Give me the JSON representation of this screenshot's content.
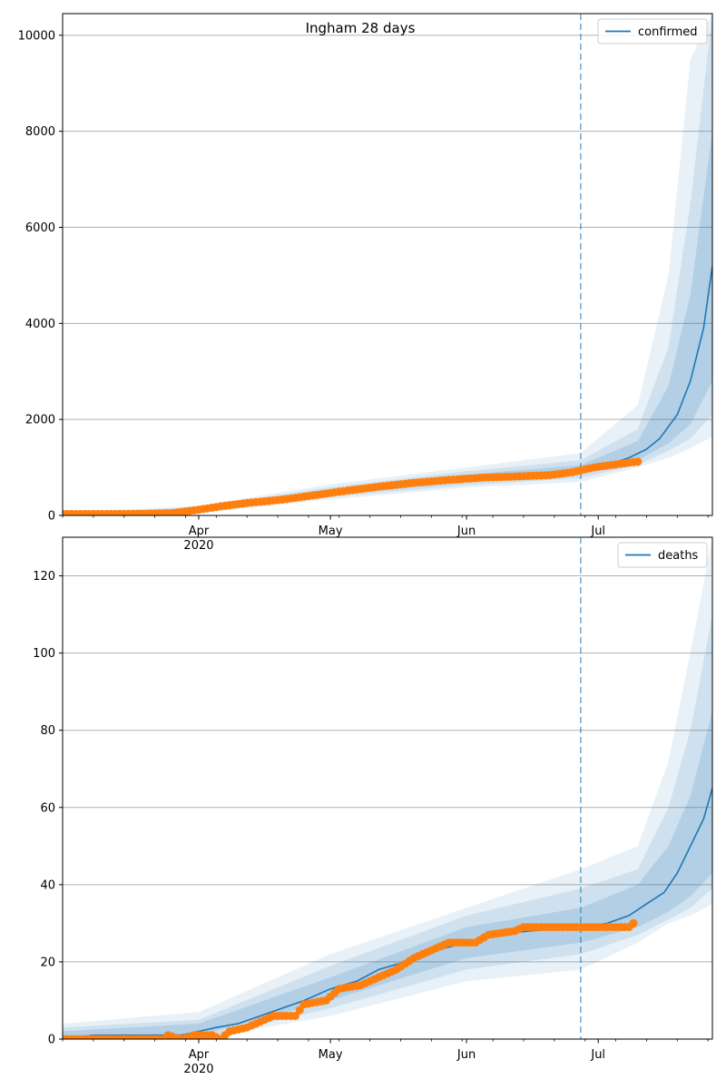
{
  "chart_data": [
    {
      "type": "line",
      "title": "Ingham 28 days",
      "xlabel": "",
      "ylabel": "",
      "x_range": [
        "2020-03-01",
        "2020-07-27"
      ],
      "ylim": [
        0,
        10450
      ],
      "yticks": [
        0,
        2000,
        4000,
        6000,
        8000,
        10000
      ],
      "xticks": [
        {
          "date": "2020-04-01",
          "label": "Apr",
          "sublabel": "2020"
        },
        {
          "date": "2020-05-01",
          "label": "May",
          "sublabel": ""
        },
        {
          "date": "2020-06-01",
          "label": "Jun",
          "sublabel": ""
        },
        {
          "date": "2020-07-01",
          "label": "Jul",
          "sublabel": ""
        }
      ],
      "grid": "y",
      "legend_position": "top-right",
      "forecast_start": "2020-06-27",
      "series": [
        {
          "name": "confirmed",
          "kind": "model-median",
          "color": "#1f77b4",
          "points": [
            [
              "2020-03-01",
              30
            ],
            [
              "2020-03-15",
              30
            ],
            [
              "2020-03-24",
              40
            ],
            [
              "2020-03-28",
              90
            ],
            [
              "2020-04-04",
              190
            ],
            [
              "2020-04-10",
              250
            ],
            [
              "2020-04-18",
              300
            ],
            [
              "2020-04-25",
              400
            ],
            [
              "2020-05-01",
              470
            ],
            [
              "2020-05-08",
              550
            ],
            [
              "2020-05-15",
              620
            ],
            [
              "2020-05-22",
              690
            ],
            [
              "2020-06-01",
              760
            ],
            [
              "2020-06-10",
              800
            ],
            [
              "2020-06-20",
              850
            ],
            [
              "2020-06-27",
              950
            ],
            [
              "2020-07-03",
              1050
            ],
            [
              "2020-07-08",
              1200
            ],
            [
              "2020-07-12",
              1380
            ],
            [
              "2020-07-15",
              1600
            ],
            [
              "2020-07-19",
              2100
            ],
            [
              "2020-07-22",
              2800
            ],
            [
              "2020-07-25",
              3900
            ],
            [
              "2020-07-27",
              5200
            ]
          ]
        },
        {
          "name": "",
          "kind": "observed",
          "color": "#ff7f0e",
          "points": [
            [
              "2020-03-01",
              30
            ],
            [
              "2020-03-15",
              30
            ],
            [
              "2020-03-20",
              35
            ],
            [
              "2020-03-26",
              50
            ],
            [
              "2020-04-01",
              120
            ],
            [
              "2020-04-06",
              190
            ],
            [
              "2020-04-12",
              260
            ],
            [
              "2020-04-20",
              330
            ],
            [
              "2020-04-28",
              430
            ],
            [
              "2020-05-05",
              520
            ],
            [
              "2020-05-12",
              600
            ],
            [
              "2020-05-20",
              680
            ],
            [
              "2020-05-28",
              740
            ],
            [
              "2020-06-05",
              790
            ],
            [
              "2020-06-12",
              810
            ],
            [
              "2020-06-20",
              840
            ],
            [
              "2020-06-25",
              900
            ],
            [
              "2020-06-30",
              1000
            ],
            [
              "2020-07-04",
              1050
            ],
            [
              "2020-07-08",
              1100
            ],
            [
              "2020-07-10",
              1120
            ]
          ]
        }
      ],
      "bands": {
        "color": "#1f77b4",
        "layers": [
          {
            "level": "outer",
            "points": [
              [
                "2020-03-01",
                0,
                70
              ],
              [
                "2020-04-01",
                50,
                200
              ],
              [
                "2020-05-01",
                330,
                650
              ],
              [
                "2020-06-01",
                580,
                1000
              ],
              [
                "2020-06-27",
                700,
                1300
              ],
              [
                "2020-07-10",
                1000,
                2300
              ],
              [
                "2020-07-17",
                1200,
                5000
              ],
              [
                "2020-07-22",
                1400,
                9500
              ],
              [
                "2020-07-27",
                1650,
                10450
              ]
            ]
          },
          {
            "level": "mid",
            "points": [
              [
                "2020-03-01",
                10,
                55
              ],
              [
                "2020-04-01",
                70,
                170
              ],
              [
                "2020-05-01",
                380,
                590
              ],
              [
                "2020-06-01",
                630,
                920
              ],
              [
                "2020-06-27",
                780,
                1150
              ],
              [
                "2020-07-10",
                1050,
                1800
              ],
              [
                "2020-07-17",
                1350,
                3500
              ],
              [
                "2020-07-22",
                1600,
                6500
              ],
              [
                "2020-07-27",
                2100,
                10450
              ]
            ]
          },
          {
            "level": "inner",
            "points": [
              [
                "2020-03-01",
                20,
                45
              ],
              [
                "2020-04-01",
                90,
                150
              ],
              [
                "2020-05-01",
                420,
                530
              ],
              [
                "2020-06-01",
                690,
                850
              ],
              [
                "2020-06-27",
                860,
                1050
              ],
              [
                "2020-07-10",
                1150,
                1550
              ],
              [
                "2020-07-17",
                1500,
                2700
              ],
              [
                "2020-07-22",
                1900,
                4600
              ],
              [
                "2020-07-27",
                2800,
                8000
              ]
            ]
          }
        ]
      }
    },
    {
      "type": "line",
      "title": "",
      "xlabel": "",
      "ylabel": "",
      "x_range": [
        "2020-03-01",
        "2020-07-27"
      ],
      "ylim": [
        0,
        130
      ],
      "yticks": [
        0,
        20,
        40,
        60,
        80,
        100,
        120
      ],
      "xticks": [
        {
          "date": "2020-04-01",
          "label": "Apr",
          "sublabel": "2020"
        },
        {
          "date": "2020-05-01",
          "label": "May",
          "sublabel": ""
        },
        {
          "date": "2020-06-01",
          "label": "Jun",
          "sublabel": ""
        },
        {
          "date": "2020-07-01",
          "label": "Jul",
          "sublabel": ""
        }
      ],
      "grid": "y",
      "legend_position": "top-right",
      "forecast_start": "2020-06-27",
      "series": [
        {
          "name": "deaths",
          "kind": "model-median",
          "color": "#1f77b4",
          "points": [
            [
              "2020-03-01",
              0
            ],
            [
              "2020-03-08",
              1
            ],
            [
              "2020-03-28",
              1
            ],
            [
              "2020-04-01",
              2
            ],
            [
              "2020-04-05",
              3
            ],
            [
              "2020-04-10",
              4
            ],
            [
              "2020-04-15",
              6
            ],
            [
              "2020-04-20",
              8
            ],
            [
              "2020-04-25",
              10
            ],
            [
              "2020-05-01",
              13
            ],
            [
              "2020-05-07",
              15
            ],
            [
              "2020-05-12",
              18
            ],
            [
              "2020-05-18",
              20
            ],
            [
              "2020-05-25",
              23
            ],
            [
              "2020-06-01",
              25
            ],
            [
              "2020-06-08",
              27
            ],
            [
              "2020-06-15",
              28
            ],
            [
              "2020-06-27",
              29
            ],
            [
              "2020-07-03",
              30
            ],
            [
              "2020-07-08",
              32
            ],
            [
              "2020-07-12",
              35
            ],
            [
              "2020-07-16",
              38
            ],
            [
              "2020-07-19",
              43
            ],
            [
              "2020-07-22",
              50
            ],
            [
              "2020-07-25",
              57
            ],
            [
              "2020-07-27",
              65
            ]
          ]
        },
        {
          "name": "",
          "kind": "observed",
          "color": "#ff7f0e",
          "points": [
            [
              "2020-03-01",
              0
            ],
            [
              "2020-03-24",
              0
            ],
            [
              "2020-03-25",
              1
            ],
            [
              "2020-03-28",
              0
            ],
            [
              "2020-03-31",
              1
            ],
            [
              "2020-04-04",
              1
            ],
            [
              "2020-04-06",
              0
            ],
            [
              "2020-04-08",
              2
            ],
            [
              "2020-04-12",
              3
            ],
            [
              "2020-04-16",
              5
            ],
            [
              "2020-04-18",
              6
            ],
            [
              "2020-04-23",
              6
            ],
            [
              "2020-04-25",
              9
            ],
            [
              "2020-04-30",
              10
            ],
            [
              "2020-05-03",
              13
            ],
            [
              "2020-05-08",
              14
            ],
            [
              "2020-05-12",
              16
            ],
            [
              "2020-05-16",
              18
            ],
            [
              "2020-05-20",
              21
            ],
            [
              "2020-05-24",
              23
            ],
            [
              "2020-05-28",
              25
            ],
            [
              "2020-06-03",
              25
            ],
            [
              "2020-06-06",
              27
            ],
            [
              "2020-06-12",
              28
            ],
            [
              "2020-06-14",
              29
            ],
            [
              "2020-06-25",
              29
            ],
            [
              "2020-07-01",
              29
            ],
            [
              "2020-07-08",
              29
            ],
            [
              "2020-07-09",
              30
            ]
          ]
        }
      ],
      "bands": {
        "color": "#1f77b4",
        "layers": [
          {
            "level": "outer",
            "points": [
              [
                "2020-03-01",
                0,
                4
              ],
              [
                "2020-04-01",
                0,
                7
              ],
              [
                "2020-05-01",
                6,
                22
              ],
              [
                "2020-06-01",
                15,
                34
              ],
              [
                "2020-06-27",
                18,
                44
              ],
              [
                "2020-07-10",
                25,
                50
              ],
              [
                "2020-07-17",
                30,
                72
              ],
              [
                "2020-07-22",
                32,
                100
              ],
              [
                "2020-07-27",
                35,
                130
              ]
            ]
          },
          {
            "level": "mid",
            "points": [
              [
                "2020-03-01",
                0,
                3
              ],
              [
                "2020-04-01",
                0,
                5
              ],
              [
                "2020-05-01",
                8,
                19
              ],
              [
                "2020-06-01",
                18,
                32
              ],
              [
                "2020-06-27",
                22,
                39
              ],
              [
                "2020-07-10",
                27,
                44
              ],
              [
                "2020-07-17",
                31,
                60
              ],
              [
                "2020-07-22",
                34,
                80
              ],
              [
                "2020-07-27",
                39,
                110
              ]
            ]
          },
          {
            "level": "inner",
            "points": [
              [
                "2020-03-01",
                0,
                2
              ],
              [
                "2020-04-01",
                1,
                4
              ],
              [
                "2020-05-01",
                10,
                16
              ],
              [
                "2020-06-01",
                21,
                29
              ],
              [
                "2020-06-27",
                25,
                34
              ],
              [
                "2020-07-10",
                29,
                40
              ],
              [
                "2020-07-17",
                33,
                50
              ],
              [
                "2020-07-22",
                37,
                63
              ],
              [
                "2020-07-27",
                43,
                85
              ]
            ]
          }
        ]
      }
    }
  ]
}
